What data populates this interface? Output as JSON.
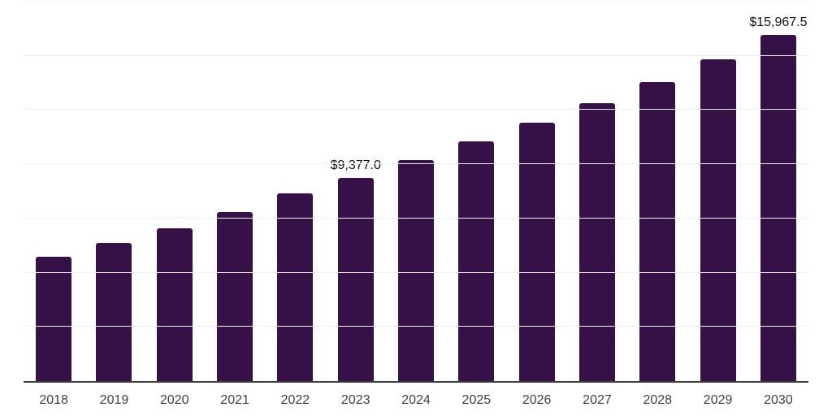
{
  "chart_data": {
    "type": "bar",
    "title": "",
    "xlabel": "",
    "ylabel": "",
    "categories": [
      "2018",
      "2019",
      "2020",
      "2021",
      "2022",
      "2023",
      "2024",
      "2025",
      "2026",
      "2027",
      "2028",
      "2029",
      "2030"
    ],
    "values": [
      5750,
      6360,
      7030,
      7780,
      8640,
      9377.0,
      10200,
      11060,
      11920,
      12830,
      13790,
      14840,
      15967.5
    ],
    "value_labels": [
      "",
      "",
      "",
      "",
      "",
      "$9,377.0",
      "",
      "",
      "",
      "",
      "",
      "",
      "$15,967.5"
    ],
    "ylim": [
      0,
      17500
    ],
    "gridline_step": 2500,
    "grid": "horizontal-only",
    "legend": "none",
    "y_axis_tick_labels_visible": false,
    "colors": {
      "bar": "#351148",
      "axis": "#3c3c3c",
      "gridline": "#f1f1f3",
      "value_label": "#111111",
      "tick_label": "#404040",
      "background": "#ffffff"
    }
  }
}
